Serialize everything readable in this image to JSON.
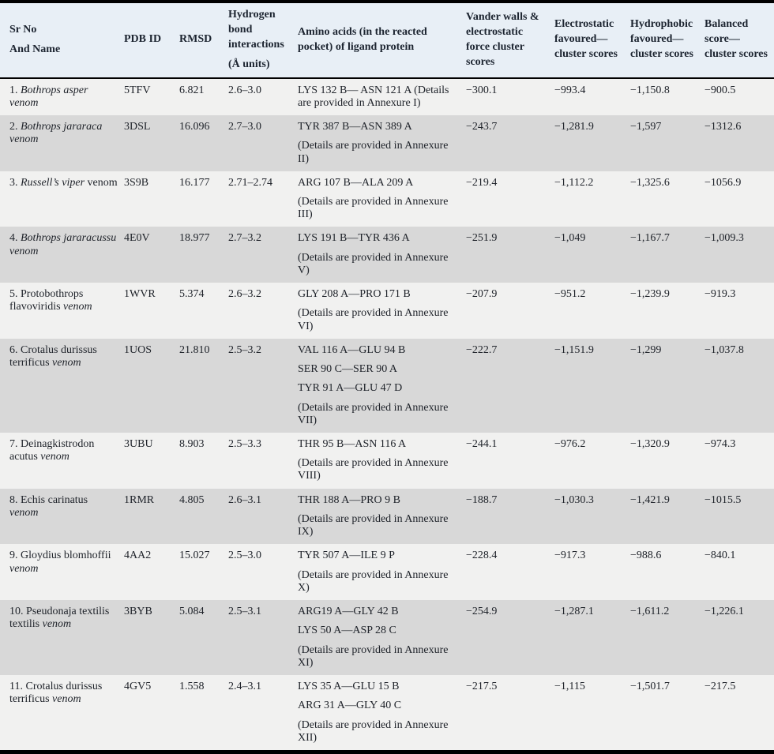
{
  "table": {
    "colors": {
      "header_bg": "#e8eff6",
      "row_odd_bg": "#f1f1f0",
      "row_even_bg": "#d8d8d8",
      "border": "#000000",
      "text": "#20242b"
    },
    "columns": [
      {
        "lines": [
          "Sr No",
          "And Name"
        ]
      },
      {
        "lines": [
          "PDB ID"
        ]
      },
      {
        "lines": [
          "RMSD"
        ]
      },
      {
        "lines": [
          "Hydrogen bond interactions",
          "(Å units)"
        ]
      },
      {
        "lines": [
          "Amino acids (in the reacted pocket) of ligand protein"
        ]
      },
      {
        "lines": [
          "Vander walls & electrostatic force cluster scores"
        ]
      },
      {
        "lines": [
          "Electrostatic favoured—cluster scores"
        ]
      },
      {
        "lines": [
          "Hydrophobic favoured—cluster scores"
        ]
      },
      {
        "lines": [
          "Balanced score—cluster scores"
        ]
      }
    ],
    "rows": [
      {
        "name_segments": [
          {
            "text": "1. ",
            "italic": false
          },
          {
            "text": "Bothrops asper venom",
            "italic": true
          }
        ],
        "pdb_id": "5TFV",
        "rmsd": "6.821",
        "hbond": "2.6–3.0",
        "amino_acids": [
          "LYS 132 B— ASN 121 A (Details are provided in Annexure I)"
        ],
        "vdw_score": "−300.1",
        "electrostatic_score": "−993.4",
        "hydrophobic_score": "−1,150.8",
        "balanced_score": "−900.5"
      },
      {
        "name_segments": [
          {
            "text": "2. ",
            "italic": false
          },
          {
            "text": "Bothrops jararaca venom",
            "italic": true
          }
        ],
        "pdb_id": "3DSL",
        "rmsd": "16.096",
        "hbond": "2.7–3.0",
        "amino_acids": [
          "TYR 387 B—ASN 389 A",
          "(Details are provided in Annexure II)"
        ],
        "vdw_score": "−243.7",
        "electrostatic_score": "−1,281.9",
        "hydrophobic_score": "−1,597",
        "balanced_score": "−1312.6"
      },
      {
        "name_segments": [
          {
            "text": "3. ",
            "italic": false
          },
          {
            "text": "Russell’s viper",
            "italic": true
          },
          {
            "text": " venom",
            "italic": false
          }
        ],
        "pdb_id": "3S9B",
        "rmsd": "16.177",
        "hbond": "2.71–2.74",
        "amino_acids": [
          "ARG 107 B—ALA 209 A",
          "(Details are provided in Annexure III)"
        ],
        "vdw_score": "−219.4",
        "electrostatic_score": "−1,112.2",
        "hydrophobic_score": "−1,325.6",
        "balanced_score": "−1056.9"
      },
      {
        "name_segments": [
          {
            "text": "4. ",
            "italic": false
          },
          {
            "text": "Bothrops jararacussu venom",
            "italic": true
          }
        ],
        "pdb_id": "4E0V",
        "rmsd": "18.977",
        "hbond": "2.7–3.2",
        "amino_acids": [
          "LYS 191 B—TYR 436 A",
          "(Details are provided in Annexure V)"
        ],
        "vdw_score": "−251.9",
        "electrostatic_score": "−1,049",
        "hydrophobic_score": "−1,167.7",
        "balanced_score": "−1,009.3"
      },
      {
        "name_segments": [
          {
            "text": "5. Protobothrops flavoviridis ",
            "italic": false
          },
          {
            "text": "venom",
            "italic": true
          }
        ],
        "pdb_id": "1WVR",
        "rmsd": "5.374",
        "hbond": "2.6–3.2",
        "amino_acids": [
          "GLY 208 A—PRO 171 B",
          "(Details are provided in Annexure VI)"
        ],
        "vdw_score": "−207.9",
        "electrostatic_score": "−951.2",
        "hydrophobic_score": "−1,239.9",
        "balanced_score": "−919.3"
      },
      {
        "name_segments": [
          {
            "text": "6. Crotalus durissus terrificus ",
            "italic": false
          },
          {
            "text": "venom",
            "italic": true
          }
        ],
        "pdb_id": "1UOS",
        "rmsd": "21.810",
        "hbond": "2.5–3.2",
        "amino_acids": [
          "VAL 116 A—GLU 94 B",
          "SER 90 C—SER 90 A",
          "TYR 91 A—GLU 47 D",
          "(Details are provided in Annexure VII)"
        ],
        "vdw_score": "−222.7",
        "electrostatic_score": "−1,151.9",
        "hydrophobic_score": "−1,299",
        "balanced_score": "−1,037.8"
      },
      {
        "name_segments": [
          {
            "text": "7. Deinagkistrodon acutus ",
            "italic": false
          },
          {
            "text": "venom",
            "italic": true
          }
        ],
        "pdb_id": "3UBU",
        "rmsd": "8.903",
        "hbond": "2.5–3.3",
        "amino_acids": [
          "THR 95 B—ASN 116 A",
          "(Details are provided in Annexure VIII)"
        ],
        "vdw_score": "−244.1",
        "electrostatic_score": "−976.2",
        "hydrophobic_score": "−1,320.9",
        "balanced_score": "−974.3"
      },
      {
        "name_segments": [
          {
            "text": "8. Echis carinatus ",
            "italic": false
          },
          {
            "text": "venom",
            "italic": true
          }
        ],
        "pdb_id": "1RMR",
        "rmsd": "4.805",
        "hbond": "2.6–3.1",
        "amino_acids": [
          "THR 188 A—PRO 9 B",
          "(Details are provided in Annexure IX)"
        ],
        "vdw_score": "−188.7",
        "electrostatic_score": "−1,030.3",
        "hydrophobic_score": "−1,421.9",
        "balanced_score": "−1015.5"
      },
      {
        "name_segments": [
          {
            "text": "9. Gloydius blomhoffii ",
            "italic": false
          },
          {
            "text": "venom",
            "italic": true
          }
        ],
        "pdb_id": "4AA2",
        "rmsd": "15.027",
        "hbond": "2.5–3.0",
        "amino_acids": [
          "TYR 507 A—ILE 9 P",
          "(Details are provided in Annexure X)"
        ],
        "vdw_score": "−228.4",
        "electrostatic_score": "−917.3",
        "hydrophobic_score": "−988.6",
        "balanced_score": "−840.1"
      },
      {
        "name_segments": [
          {
            "text": "10. Pseudonaja textilis textilis ",
            "italic": false
          },
          {
            "text": "venom",
            "italic": true
          }
        ],
        "pdb_id": "3BYB",
        "rmsd": "5.084",
        "hbond": "2.5–3.1",
        "amino_acids": [
          "ARG19 A—GLY 42 B",
          "LYS 50 A—ASP 28 C",
          "(Details are provided in Annexure XI)"
        ],
        "vdw_score": "−254.9",
        "electrostatic_score": "−1,287.1",
        "hydrophobic_score": "−1,611.2",
        "balanced_score": "−1,226.1"
      },
      {
        "name_segments": [
          {
            "text": "11. Crotalus durissus terrificus ",
            "italic": false
          },
          {
            "text": "venom",
            "italic": true
          }
        ],
        "pdb_id": "4GV5",
        "rmsd": "1.558",
        "hbond": "2.4–3.1",
        "amino_acids": [
          "LYS 35 A—GLU 15 B",
          "ARG 31 A—GLY 40 C",
          "(Details are provided in Annexure XII)"
        ],
        "vdw_score": "−217.5",
        "electrostatic_score": "−1,115",
        "hydrophobic_score": "−1,501.7",
        "balanced_score": "−217.5"
      }
    ]
  }
}
